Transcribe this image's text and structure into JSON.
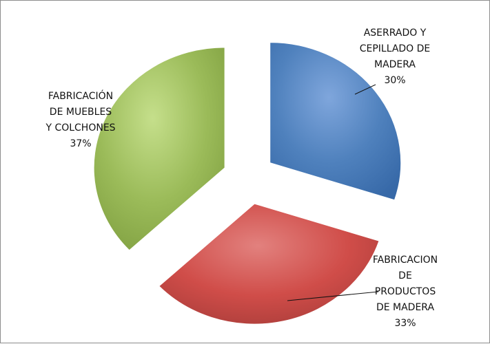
{
  "chart_data": {
    "type": "pie",
    "title": "",
    "series": [
      {
        "values": [
          30,
          33,
          37
        ]
      }
    ],
    "slices": [
      {
        "label_lines": [
          "ASERRADO Y",
          "CEPILLADO DE",
          "MADERA"
        ],
        "percent_label": "30%",
        "value": 30,
        "color": "#4f81bd"
      },
      {
        "label_lines": [
          "FABRICACION",
          "DE",
          "PRODUCTOS",
          "DE MADERA"
        ],
        "percent_label": "33%",
        "value": 33,
        "color": "#c0504d"
      },
      {
        "label_lines": [
          "FABRICACIÓN",
          "DE MUEBLES",
          "Y COLCHONES"
        ],
        "percent_label": "37%",
        "value": 37,
        "color": "#9bbb59"
      }
    ],
    "legend": "none",
    "exploded": true
  }
}
